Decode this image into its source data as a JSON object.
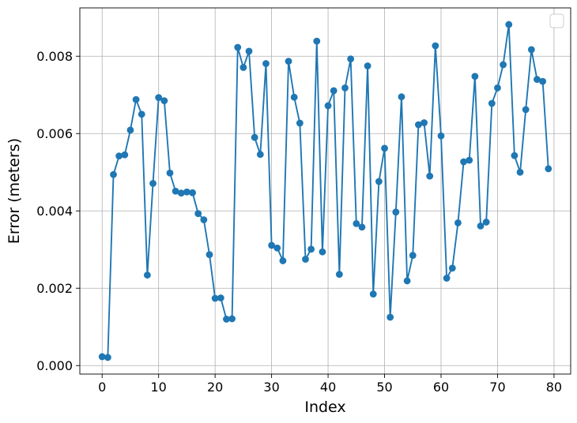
{
  "chart_data": {
    "type": "line",
    "xlabel": "Index",
    "ylabel": "Error (meters)",
    "xlim": [
      -3.95,
      82.95
    ],
    "ylim": [
      -0.00022,
      0.00925
    ],
    "xticks": [
      0,
      10,
      20,
      30,
      40,
      50,
      60,
      70,
      80
    ],
    "xtick_labels": [
      "0",
      "10",
      "20",
      "30",
      "40",
      "50",
      "60",
      "70",
      "80"
    ],
    "yticks": [
      0.0,
      0.002,
      0.004,
      0.006,
      0.008
    ],
    "ytick_labels": [
      "0.000",
      "0.002",
      "0.004",
      "0.006",
      "0.008"
    ],
    "grid": true,
    "legend": "top-right (empty)",
    "line_color": "#1f77b4",
    "marker": "circle",
    "series": [
      {
        "x": [
          0,
          1,
          2,
          3,
          4,
          5,
          6,
          7,
          8,
          9,
          10,
          11,
          12,
          13,
          14,
          15,
          16,
          17,
          18,
          19,
          20,
          21,
          22,
          23,
          24,
          25,
          26,
          27,
          28,
          29,
          30,
          31,
          32,
          33,
          34,
          35,
          36,
          37,
          38,
          39,
          40,
          41,
          42,
          43,
          44,
          45,
          46,
          47,
          48,
          49,
          50,
          51,
          52,
          53,
          54,
          55,
          56,
          57,
          58,
          59,
          60,
          61,
          62,
          63,
          64,
          65,
          66,
          67,
          68,
          69,
          70,
          71,
          72,
          73,
          74,
          75,
          76,
          77,
          78,
          79
        ],
        "values": [
          0.00023,
          0.00021,
          0.00494,
          0.00542,
          0.00545,
          0.00609,
          0.00688,
          0.0065,
          0.00234,
          0.00471,
          0.00693,
          0.00685,
          0.00498,
          0.00451,
          0.00446,
          0.00449,
          0.00447,
          0.00393,
          0.00377,
          0.00287,
          0.00174,
          0.00175,
          0.0012,
          0.00121,
          0.00823,
          0.00771,
          0.00813,
          0.0059,
          0.00546,
          0.00781,
          0.00311,
          0.00304,
          0.00271,
          0.00787,
          0.00694,
          0.00627,
          0.00275,
          0.00301,
          0.00839,
          0.00294,
          0.00672,
          0.00711,
          0.00236,
          0.00718,
          0.00793,
          0.00367,
          0.00358,
          0.00775,
          0.00185,
          0.00476,
          0.00562,
          0.00125,
          0.00397,
          0.00695,
          0.00219,
          0.00285,
          0.00623,
          0.00628,
          0.0049,
          0.00827,
          0.00594,
          0.00226,
          0.00252,
          0.00369,
          0.00527,
          0.00531,
          0.00748,
          0.00361,
          0.00371,
          0.00678,
          0.00718,
          0.00778,
          0.00882,
          0.00543,
          0.005,
          0.00662,
          0.00817,
          0.0074,
          0.00735,
          0.00509
        ]
      }
    ]
  }
}
